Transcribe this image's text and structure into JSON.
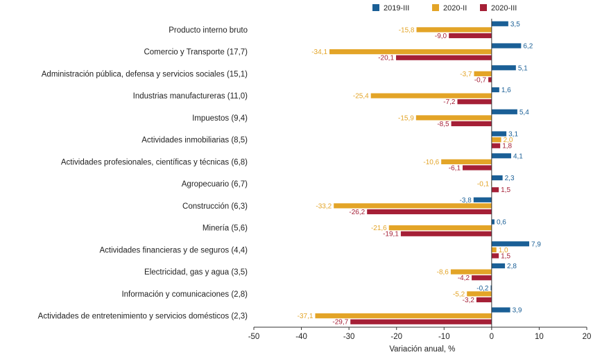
{
  "chart_data": {
    "type": "bar",
    "orientation": "horizontal",
    "xlabel": "Variación anual, %",
    "xlim": [
      -50,
      20
    ],
    "xticks": [
      "-50",
      "-40",
      "-30",
      "-20",
      "-10",
      "0",
      "10",
      "20"
    ],
    "legend_position": "top-right",
    "categories": [
      "Producto interno bruto",
      "Comercio y Transporte (17,7)",
      "Administración pública, defensa y servicios sociales (15,1)",
      "Industrias manufactureras (11,0)",
      "Impuestos (9,4)",
      "Actividades inmobiliarias (8,5)",
      "Actividades profesionales, científicas y técnicas (6,8)",
      "Agropecuario (6,7)",
      "Construcción (6,3)",
      "Minería (5,6)",
      "Actividades financieras y de seguros (4,4)",
      "Electricidad, gas y agua (3,5)",
      "Información y comunicaciones (2,8)",
      "Actividades de entretenimiento y servicios domésticos (2,3)"
    ],
    "series": [
      {
        "name": "2019-III",
        "color": "#1a5f96",
        "values": [
          3.5,
          6.2,
          5.1,
          1.6,
          5.4,
          3.1,
          4.1,
          2.3,
          -3.8,
          0.6,
          7.9,
          2.8,
          -0.2,
          3.9
        ],
        "labels": [
          "3,5",
          "6,2",
          "5,1",
          "1,6",
          "5,4",
          "3,1",
          "4,1",
          "2,3",
          "-3,8",
          "0,6",
          "7,9",
          "2,8",
          "-0,2",
          "3,9"
        ]
      },
      {
        "name": "2020-II",
        "color": "#e3a427",
        "values": [
          -15.8,
          -34.1,
          -3.7,
          -25.4,
          -15.9,
          2.0,
          -10.6,
          -0.1,
          -33.2,
          -21.6,
          1.0,
          -8.6,
          -5.2,
          -37.1
        ],
        "labels": [
          "-15,8",
          "-34,1",
          "-3,7",
          "-25,4",
          "-15,9",
          "2,0",
          "-10,6",
          "-0,1",
          "-33,2",
          "-21,6",
          "1,0",
          "-8,6",
          "-5,2",
          "-37,1"
        ]
      },
      {
        "name": "2020-III",
        "color": "#a51f36",
        "values": [
          -9.0,
          -20.1,
          -0.7,
          -7.2,
          -8.5,
          1.8,
          -6.1,
          1.5,
          -26.2,
          -19.1,
          1.5,
          -4.2,
          -3.2,
          -29.7
        ],
        "labels": [
          "-9,0",
          "-20,1",
          "-0,7",
          "-7,2",
          "-8,5",
          "1,8",
          "-6,1",
          "1,5",
          "-26,2",
          "-19,1",
          "1,5",
          "-4,2",
          "-3,2",
          "-29,7"
        ]
      }
    ]
  }
}
